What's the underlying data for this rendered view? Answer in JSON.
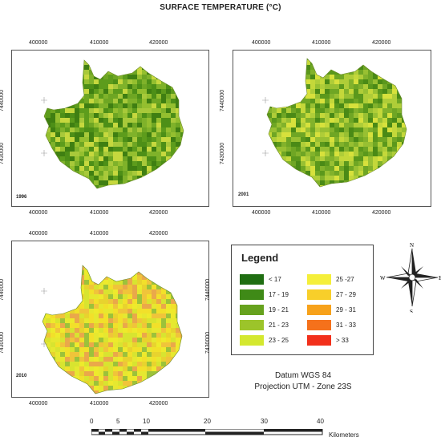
{
  "title": "SURFACE TEMPERATURE (°C)",
  "maps": [
    {
      "year": "1996",
      "x_ticks": [
        "400000",
        "410000",
        "420000"
      ],
      "y_ticks": [
        "7440000",
        "7430000"
      ],
      "palette": [
        "#3f7f12",
        "#4d8f17",
        "#5d9c1c",
        "#6ea623",
        "#7fb22a",
        "#94bf2f",
        "#a8c93a",
        "#c6d83e"
      ]
    },
    {
      "year": "2001",
      "x_ticks": [
        "400000",
        "410000",
        "420000"
      ],
      "y_ticks": [
        "7440000",
        "7430000"
      ],
      "palette": [
        "#4a8a16",
        "#5b981c",
        "#6fa624",
        "#82b22b",
        "#98c032",
        "#afcd38",
        "#c4d83a",
        "#d7e13c"
      ]
    },
    {
      "year": "2010",
      "x_ticks": [
        "400000",
        "410000",
        "420000"
      ],
      "y_ticks": [
        "7440000",
        "7430000"
      ],
      "palette": [
        "#e6e830",
        "#eeea2c",
        "#d8e430",
        "#f2e02a",
        "#e8d32e",
        "#f0c43a",
        "#9cc23a",
        "#eaa84a"
      ]
    }
  ],
  "legend": {
    "title": "Legend",
    "items": [
      {
        "label": "<   17",
        "color": "#1f6e12"
      },
      {
        "label": "17 - 19",
        "color": "#3f8a17"
      },
      {
        "label": "19 - 21",
        "color": "#66a21e"
      },
      {
        "label": "21 - 23",
        "color": "#9cc42a"
      },
      {
        "label": "23 - 25",
        "color": "#d4e82f"
      },
      {
        "label": "25 -27",
        "color": "#f5ef3a"
      },
      {
        "label": "27 - 29",
        "color": "#f8cf2a"
      },
      {
        "label": "29 - 31",
        "color": "#f7a21b"
      },
      {
        "label": "31 - 33",
        "color": "#f5711b"
      },
      {
        "label": ">   33",
        "color": "#f2301b"
      }
    ]
  },
  "north_arrow": {
    "n": "N",
    "s": "S",
    "e": "E",
    "w": "W"
  },
  "datum": "Datum WGS 84",
  "projection": "Projection UTM -  Zone 23S",
  "scale": {
    "labels": [
      "0",
      "5",
      "10",
      "20",
      "30",
      "40"
    ],
    "unit": "Kilometers"
  }
}
